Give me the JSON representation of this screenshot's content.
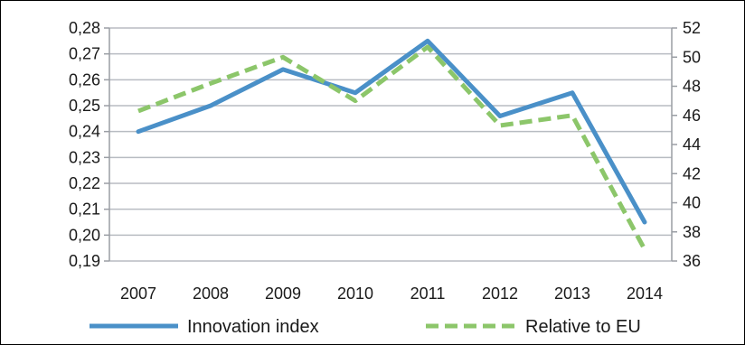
{
  "chart_data": {
    "type": "line",
    "categories": [
      "2007",
      "2008",
      "2009",
      "2010",
      "2011",
      "2012",
      "2013",
      "2014"
    ],
    "series": [
      {
        "name": "Innovation index",
        "axis": "left",
        "color": "#4a90c8",
        "style": "solid",
        "values": [
          0.24,
          0.25,
          0.264,
          0.255,
          0.275,
          0.246,
          0.255,
          0.205
        ]
      },
      {
        "name": "Relative to EU",
        "axis": "right",
        "color": "#8cc66a",
        "style": "dashed",
        "values": [
          46.3,
          48.2,
          50.0,
          47.0,
          50.7,
          45.3,
          46.0,
          36.8
        ]
      }
    ],
    "y_left": {
      "min": 0.19,
      "max": 0.28,
      "ticks": [
        "0,19",
        "0,20",
        "0,21",
        "0,22",
        "0,23",
        "0,24",
        "0,25",
        "0,26",
        "0,27",
        "0,28"
      ]
    },
    "y_right": {
      "min": 36,
      "max": 52,
      "ticks": [
        "36",
        "38",
        "40",
        "42",
        "44",
        "46",
        "48",
        "50",
        "52"
      ]
    },
    "grid": true,
    "legend_position": "bottom"
  }
}
